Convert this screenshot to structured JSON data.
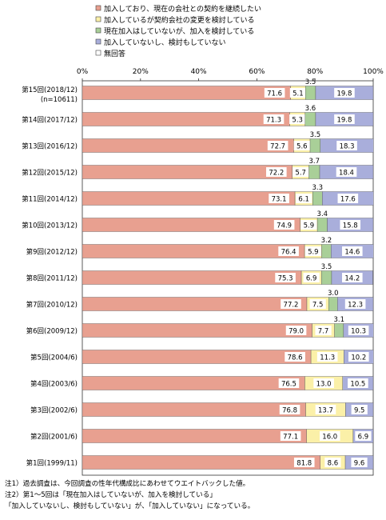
{
  "chart_data": {
    "type": "bar",
    "orientation": "horizontal",
    "stacked": true,
    "percent": true,
    "title": "",
    "xlim": [
      0,
      100
    ],
    "ticks": [
      "0%",
      "20%",
      "40%",
      "60%",
      "80%",
      "100%"
    ],
    "legend_position": "top",
    "categories": [
      "第15回(2018/12)",
      "第14回(2017/12)",
      "第13回(2016/12)",
      "第12回(2015/12)",
      "第11回(2014/12)",
      "第10回(2013/12)",
      "第9回(2012/12)",
      "第8回(2011/12)",
      "第7回(2010/12)",
      "第6回(2009/12)",
      "第5回(2004/6)",
      "第4回(2003/6)",
      "第3回(2002/6)",
      "第2回(2001/6)",
      "第1回(1999/11)"
    ],
    "sublabels": [
      "(n=10611)",
      "",
      "",
      "",
      "",
      "",
      "",
      "",
      "",
      "",
      "",
      "",
      "",
      "",
      ""
    ],
    "series": [
      {
        "name": "加入しており、現在の会社との契約を継続したい",
        "color": "#e8a090",
        "values": [
          71.6,
          71.3,
          72.7,
          72.2,
          73.1,
          74.9,
          76.4,
          75.3,
          77.2,
          79.0,
          78.6,
          76.5,
          76.8,
          77.1,
          81.8
        ],
        "labels": [
          "71.6",
          "71.3",
          "72.7",
          "72.2",
          "73.1",
          "74.9",
          "76.4",
          "75.3",
          "77.2",
          "79.0",
          "78.6",
          "76.5",
          "76.8",
          "77.1",
          "81.8"
        ]
      },
      {
        "name": "加入しているが契約会社の変更を検討している",
        "color": "#fbf0a8",
        "values": [
          5.1,
          5.3,
          5.6,
          5.7,
          6.1,
          5.9,
          5.9,
          6.9,
          7.5,
          7.7,
          11.3,
          13.0,
          13.7,
          16.0,
          8.6
        ],
        "labels": [
          "5.1",
          "5.3",
          "5.6",
          "5.7",
          "6.1",
          "5.9",
          "5.9",
          "6.9",
          "7.5",
          "7.7",
          "11.3",
          "13.0",
          "13.7",
          "16.0",
          "8.6"
        ]
      },
      {
        "name": "現在加入はしていないが、加入を検討している",
        "color": "#a9cf98",
        "values": [
          3.5,
          3.6,
          3.5,
          3.7,
          3.3,
          3.4,
          3.2,
          3.5,
          3.0,
          3.1,
          0,
          0,
          0,
          0,
          0
        ],
        "labels": [
          "3.5",
          "3.6",
          "3.5",
          "3.7",
          "3.3",
          "3.4",
          "3.2",
          "3.5",
          "3.0",
          "3.1",
          "",
          "",
          "",
          "",
          ""
        ]
      },
      {
        "name": "加入していないし、検討もしていない",
        "color": "#a9aedb",
        "values": [
          19.8,
          19.8,
          18.3,
          18.4,
          17.6,
          15.8,
          14.6,
          14.2,
          12.3,
          10.3,
          10.2,
          10.5,
          9.5,
          6.9,
          9.6
        ],
        "labels": [
          "19.8",
          "19.8",
          "18.3",
          "18.4",
          "17.6",
          "15.8",
          "14.6",
          "14.2",
          "12.3",
          "10.3",
          "10.2",
          "10.5",
          "9.5",
          "6.9",
          "9.6"
        ]
      },
      {
        "name": "無回答",
        "color": "#ffffff",
        "values": [
          0,
          0,
          0,
          0,
          0,
          0,
          0,
          0,
          0,
          0,
          0,
          0,
          0,
          0,
          0
        ],
        "labels": [
          "",
          "",
          "",
          "",
          "",
          "",
          "",
          "",
          "",
          "",
          "",
          "",
          "",
          "",
          ""
        ]
      }
    ],
    "tail_colors": [
      "#a9aedb",
      "#a9aedb",
      "#a9aedb",
      "#a9aedb",
      "#a9aedb",
      "#a9aedb",
      "#a9aedb",
      "#a9aedb",
      "#3d4e96",
      "#3d4e96",
      "#3d4e96",
      "#3d4e96",
      "#3d4e96",
      "#a9aedb",
      "#a9aedb"
    ]
  },
  "notes": [
    "注1）過去調査は、今回調査の性年代構成比にあわせてウエイトバックした値。",
    "注2）第1～5回は「現在加入はしていないが、加入を検討している」",
    "「加入していないし、検討もしていない」が、「加入していない」になっている。"
  ]
}
